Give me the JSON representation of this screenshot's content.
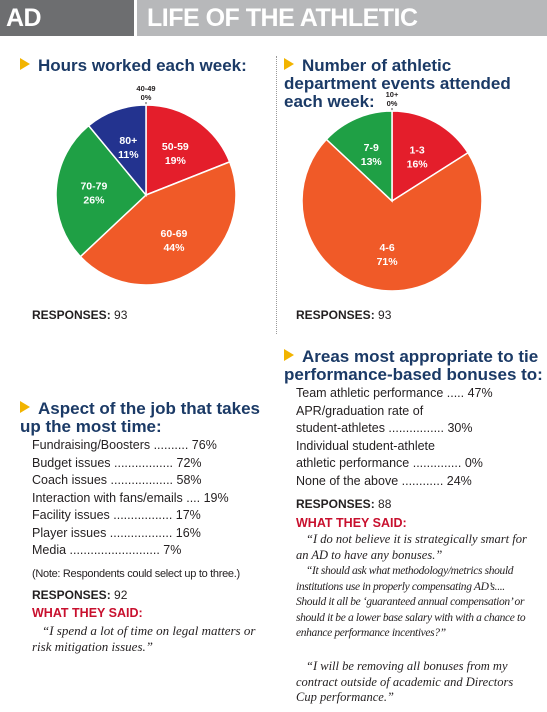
{
  "header": {
    "left": "AD SURVEY",
    "right": "LIFE OF THE ATHLETIC DIRECTOR"
  },
  "hours": {
    "title": "Hours worked each week:",
    "responses_label": "RESPONSES:",
    "responses_value": "93"
  },
  "events": {
    "title": "Number of athletic department events attended each week:",
    "responses_label": "RESPONSES:",
    "responses_value": "93"
  },
  "aspect": {
    "title": "Aspect of the job that takes up the most time:",
    "rows": [
      "Fundraising/Boosters .......... 76%",
      "Budget issues ................. 72%",
      "Coach issues .................. 58%",
      "Interaction with fans/emails .... 19%",
      "Facility issues ................. 17%",
      "Player issues .................. 16%",
      "Media .......................... 7%"
    ],
    "note": "(Note: Respondents could select up to three.)",
    "responses_label": "RESPONSES:",
    "responses_value": "92",
    "said_heading": "WHAT THEY SAID:",
    "quote": "“I spend a lot of time on legal matters or risk mitigation issues.”"
  },
  "bonuses": {
    "title": "Areas most appropriate to tie performance-based bonuses to:",
    "rows": [
      "Team athletic performance ..... 47%",
      "APR/graduation rate of",
      "student-athletes ................ 30%",
      "Individual student-athlete",
      "athletic performance .............. 0%",
      "None of the above ............ 24%"
    ],
    "responses_label": "RESPONSES:",
    "responses_value": "88",
    "said_heading": "WHAT THEY SAID:",
    "quotes": [
      "“I do not believe it is strategically smart for an AD to have any bonuses.”",
      "“It should ask what methodology/metrics should institutions use in properly compensating AD’s.... Should it all be ‘guaranteed annual compensation’ or should it be a lower base salary with with a chance to enhance performance incentives?”",
      "“I will be removing all bonuses from my contract outside of academic and Directors Cup performance.”"
    ]
  },
  "chart_data": [
    {
      "type": "pie",
      "title": "Hours worked each week:",
      "categories": [
        "40-49",
        "50-59",
        "60-69",
        "70-79",
        "80+"
      ],
      "values": [
        0,
        19,
        44,
        26,
        11
      ],
      "colors": [
        "#231f20",
        "#e41e2b",
        "#f05a28",
        "#1fa045",
        "#23338f"
      ]
    },
    {
      "type": "pie",
      "title": "Number of athletic department events attended each week:",
      "categories": [
        "10+",
        "1-3",
        "4-6",
        "7-9"
      ],
      "values": [
        0,
        16,
        71,
        13
      ],
      "colors": [
        "#231f20",
        "#e41e2b",
        "#f05a28",
        "#1fa045"
      ]
    }
  ]
}
